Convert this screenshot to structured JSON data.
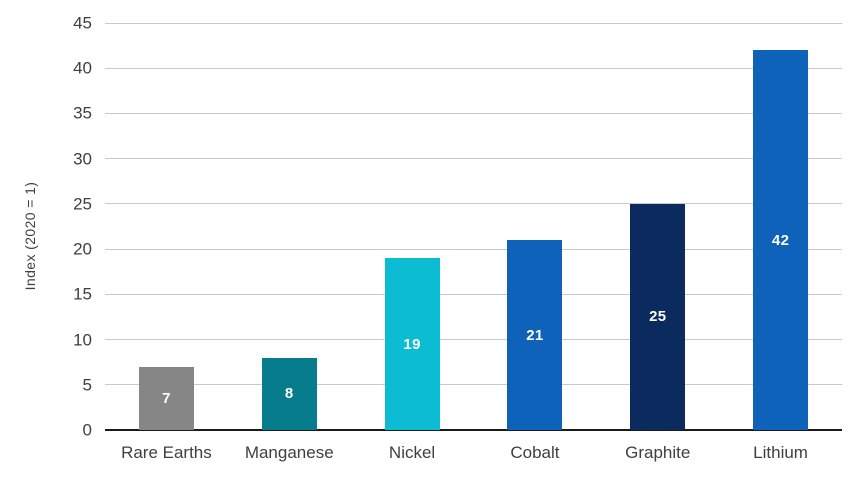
{
  "chart_data": {
    "type": "bar",
    "title": "",
    "xlabel": "",
    "ylabel": "Index (2020 = 1)",
    "categories": [
      "Rare Earths",
      "Manganese",
      "Nickel",
      "Cobalt",
      "Graphite",
      "Lithium"
    ],
    "values": [
      7,
      8,
      19,
      21,
      25,
      42
    ],
    "bar_colors": [
      "#868686",
      "#077C8C",
      "#0BBCD2",
      "#0F62BA",
      "#0B2A5E",
      "#0F62BA"
    ],
    "value_labels": [
      "7",
      "8",
      "19",
      "21",
      "25",
      "42"
    ],
    "value_label_color": "#ffffff",
    "ylim": [
      0,
      45
    ],
    "yticks": [
      0,
      5,
      10,
      15,
      20,
      25,
      30,
      35,
      40,
      45
    ],
    "grid": "horizontal",
    "legend": "none"
  },
  "colors": {
    "background": "#ffffff",
    "gridline": "#c9c9c9",
    "axis_line": "#1a1a1a",
    "tick_label": "#3f3f3f",
    "category_label": "#3f3f3f"
  }
}
